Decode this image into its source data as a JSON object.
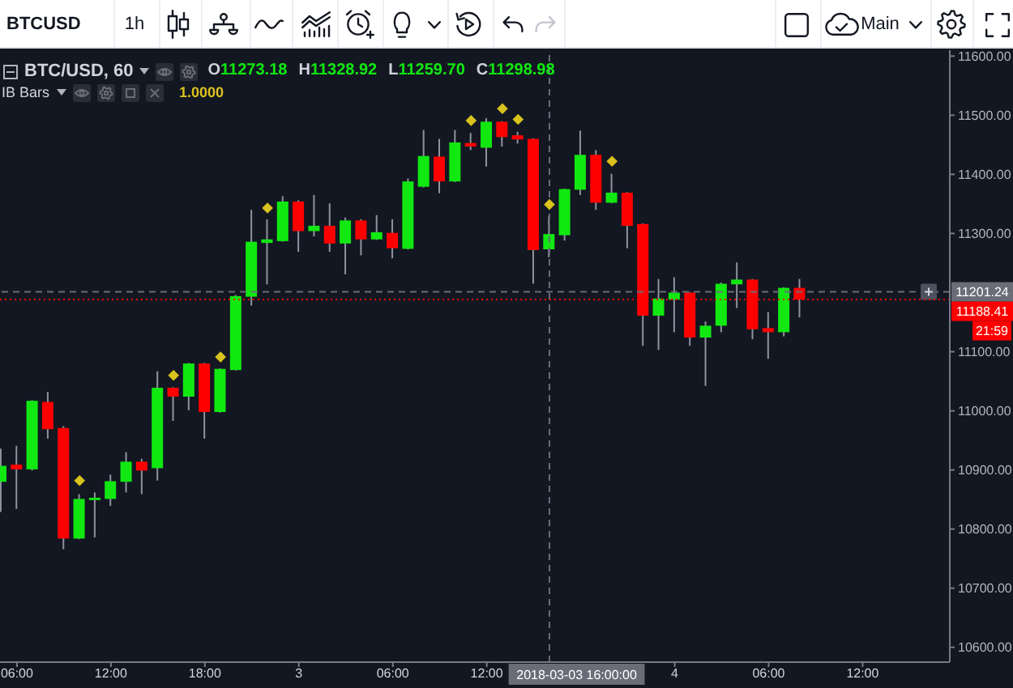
{
  "chart_data": {
    "type": "candlestick",
    "title": "BTC/USD, 60",
    "x": [
      "2018-03-02T05:00",
      "2018-03-02T06:00",
      "2018-03-02T07:00",
      "2018-03-02T08:00",
      "2018-03-02T09:00",
      "2018-03-02T10:00",
      "2018-03-02T11:00",
      "2018-03-02T12:00",
      "2018-03-02T13:00",
      "2018-03-02T14:00",
      "2018-03-02T15:00",
      "2018-03-02T16:00",
      "2018-03-02T17:00",
      "2018-03-02T18:00",
      "2018-03-02T19:00",
      "2018-03-02T20:00",
      "2018-03-02T21:00",
      "2018-03-02T22:00",
      "2018-03-02T23:00",
      "2018-03-03T00:00",
      "2018-03-03T01:00",
      "2018-03-03T02:00",
      "2018-03-03T03:00",
      "2018-03-03T04:00",
      "2018-03-03T05:00",
      "2018-03-03T06:00",
      "2018-03-03T07:00",
      "2018-03-03T08:00",
      "2018-03-03T09:00",
      "2018-03-03T10:00",
      "2018-03-03T11:00",
      "2018-03-03T12:00",
      "2018-03-03T13:00",
      "2018-03-03T14:00",
      "2018-03-03T15:00",
      "2018-03-03T16:00",
      "2018-03-03T17:00",
      "2018-03-03T18:00",
      "2018-03-03T19:00",
      "2018-03-03T20:00",
      "2018-03-03T21:00",
      "2018-03-03T22:00",
      "2018-03-03T23:00",
      "2018-03-04T00:00",
      "2018-03-04T01:00",
      "2018-03-04T02:00",
      "2018-03-04T03:00",
      "2018-03-04T04:00",
      "2018-03-04T05:00",
      "2018-03-04T06:00",
      "2018-03-04T07:00",
      "2018-03-04T08:00"
    ],
    "ohlc": [
      [
        10880,
        10936,
        10829,
        10907
      ],
      [
        10909,
        10941,
        10834,
        10901
      ],
      [
        10901,
        11018,
        10899,
        11017
      ],
      [
        11015,
        11032,
        10953,
        10969
      ],
      [
        10971,
        10974,
        10766,
        10784
      ],
      [
        10784,
        10859,
        10783,
        10851
      ],
      [
        10849,
        10862,
        10786,
        10853
      ],
      [
        10851,
        10892,
        10839,
        10881
      ],
      [
        10880,
        10930,
        10862,
        10914
      ],
      [
        10914,
        10919,
        10859,
        10899
      ],
      [
        10903,
        11067,
        10882,
        11039
      ],
      [
        11039,
        11040,
        10983,
        11024
      ],
      [
        11024,
        11081,
        11001,
        11080
      ],
      [
        11080,
        11081,
        10953,
        10998
      ],
      [
        10998,
        11072,
        10997,
        11071
      ],
      [
        11069,
        11196,
        11068,
        11194
      ],
      [
        11193,
        11340,
        11178,
        11286
      ],
      [
        11284,
        11324,
        11214,
        11290
      ],
      [
        11287,
        11363,
        11286,
        11354
      ],
      [
        11354,
        11356,
        11269,
        11304
      ],
      [
        11304,
        11365,
        11295,
        11313
      ],
      [
        11313,
        11351,
        11269,
        11283
      ],
      [
        11283,
        11327,
        11231,
        11322
      ],
      [
        11322,
        11324,
        11263,
        11290
      ],
      [
        11290,
        11331,
        11289,
        11302
      ],
      [
        11301,
        11324,
        11258,
        11275
      ],
      [
        11274,
        11393,
        11273,
        11388
      ],
      [
        11379,
        11475,
        11378,
        11431
      ],
      [
        11430,
        11460,
        11368,
        11388
      ],
      [
        11388,
        11475,
        11387,
        11454
      ],
      [
        11453,
        11470,
        11441,
        11447
      ],
      [
        11445,
        11495,
        11413,
        11489
      ],
      [
        11489,
        11490,
        11447,
        11463
      ],
      [
        11466,
        11472,
        11452,
        11459
      ],
      [
        11460,
        11461,
        11215,
        11272
      ],
      [
        11273.18,
        11328.92,
        11259.7,
        11298.98
      ],
      [
        11297,
        11376,
        11288,
        11375
      ],
      [
        11374,
        11474,
        11365,
        11433
      ],
      [
        11433,
        11441,
        11340,
        11352
      ],
      [
        11352,
        11401,
        11351,
        11369
      ],
      [
        11369,
        11370,
        11275,
        11313
      ],
      [
        11316,
        11317,
        11110,
        11161
      ],
      [
        11161,
        11223,
        11103,
        11190
      ],
      [
        11188,
        11226,
        11133,
        11200
      ],
      [
        11200,
        11201,
        11110,
        11124
      ],
      [
        11124,
        11151,
        11042,
        11144
      ],
      [
        11144,
        11217,
        11133,
        11215
      ],
      [
        11214,
        11251,
        11174,
        11222
      ],
      [
        11222,
        11223,
        11121,
        11138
      ],
      [
        11140,
        11167,
        11088,
        11133
      ],
      [
        11133,
        11209,
        11126,
        11208
      ],
      [
        11208,
        11223,
        11158,
        11188.41
      ]
    ],
    "colors": [
      "#11e811",
      "#ff0000",
      "#11e811",
      "#ff0000",
      "#ff0000",
      "#11e811",
      "#11e811",
      "#11e811",
      "#11e811",
      "#ff0000",
      "#11e811",
      "#ff0000",
      "#11e811",
      "#ff0000",
      "#11e811",
      "#11e811",
      "#11e811",
      "#11e811",
      "#11e811",
      "#ff0000",
      "#11e811",
      "#ff0000",
      "#11e811",
      "#ff0000",
      "#11e811",
      "#ff0000",
      "#11e811",
      "#11e811",
      "#ff0000",
      "#11e811",
      "#ff0000",
      "#11e811",
      "#ff0000",
      "#ff0000",
      "#ff0000",
      "#11e811",
      "#11e811",
      "#11e811",
      "#ff0000",
      "#11e811",
      "#ff0000",
      "#ff0000",
      "#11e811",
      "#11e811",
      "#ff0000",
      "#11e811",
      "#11e811",
      "#11e811",
      "#ff0000",
      "#ff0000",
      "#11e811",
      "#ff0000"
    ],
    "series": [
      {
        "type": "scatter",
        "marker": "diamond",
        "color": "#d8c21d",
        "x": [
          "2018-03-02T10:00",
          "2018-03-02T16:00",
          "2018-03-02T19:00",
          "2018-03-02T22:00",
          "2018-03-03T11:00",
          "2018-03-03T13:00",
          "2018-03-03T14:00",
          "2018-03-03T16:00",
          "2018-03-03T20:00"
        ],
        "values": [
          10882,
          11060,
          11091,
          11343,
          11491,
          11511,
          11493,
          11349,
          11422
        ]
      }
    ],
    "xlim": [
      "2018-03-02T04:55",
      "2018-03-04T17:34"
    ],
    "xticks": [
      {
        "value": "2018-03-02T06:00",
        "label": "06:00"
      },
      {
        "value": "2018-03-02T12:00",
        "label": "12:00"
      },
      {
        "value": "2018-03-02T18:00",
        "label": "18:00"
      },
      {
        "value": "2018-03-03T00:00",
        "label": "3"
      },
      {
        "value": "2018-03-03T06:00",
        "label": "06:00"
      },
      {
        "value": "2018-03-03T12:00",
        "label": "12:00"
      },
      {
        "value": "2018-03-04T00:00",
        "label": "4"
      },
      {
        "value": "2018-03-04T06:00",
        "label": "06:00"
      },
      {
        "value": "2018-03-04T12:00",
        "label": "12:00"
      }
    ],
    "ylim": [
      10575,
      11610
    ],
    "yticks": [
      {
        "value": 10600,
        "label": "10600.00"
      },
      {
        "value": 10700,
        "label": "10700.00"
      },
      {
        "value": 10800,
        "label": "10800.00"
      },
      {
        "value": 10900,
        "label": "10900.00"
      },
      {
        "value": 11000,
        "label": "11000.00"
      },
      {
        "value": 11100,
        "label": "11100.00"
      },
      {
        "value": 11300,
        "label": "11300.00"
      },
      {
        "value": 11400,
        "label": "11400.00"
      },
      {
        "value": 11500,
        "label": "11500.00"
      },
      {
        "value": 11600,
        "label": "11600.00"
      }
    ],
    "ref_lines": [
      {
        "axis": "x",
        "value": "2018-03-03T16:00",
        "label": "2018-03-03 16:00:00",
        "color": "#6a6d78",
        "line_style": "dashed"
      },
      {
        "axis": "y",
        "value": 11201.24,
        "label": "11201.24",
        "color": "#6a6d78",
        "line_style": "dashed"
      },
      {
        "axis": "y",
        "value": 11188.41,
        "label": "11188.41",
        "color": "#ff0000",
        "line_style": "dotted"
      }
    ],
    "annotations": [
      "BTCUSD",
      "1h",
      "Main",
      "O11273.18",
      "H11328.92",
      "L11259.70",
      "C11298.98",
      "IB Bars",
      "1.0000",
      "21:59"
    ]
  }
}
